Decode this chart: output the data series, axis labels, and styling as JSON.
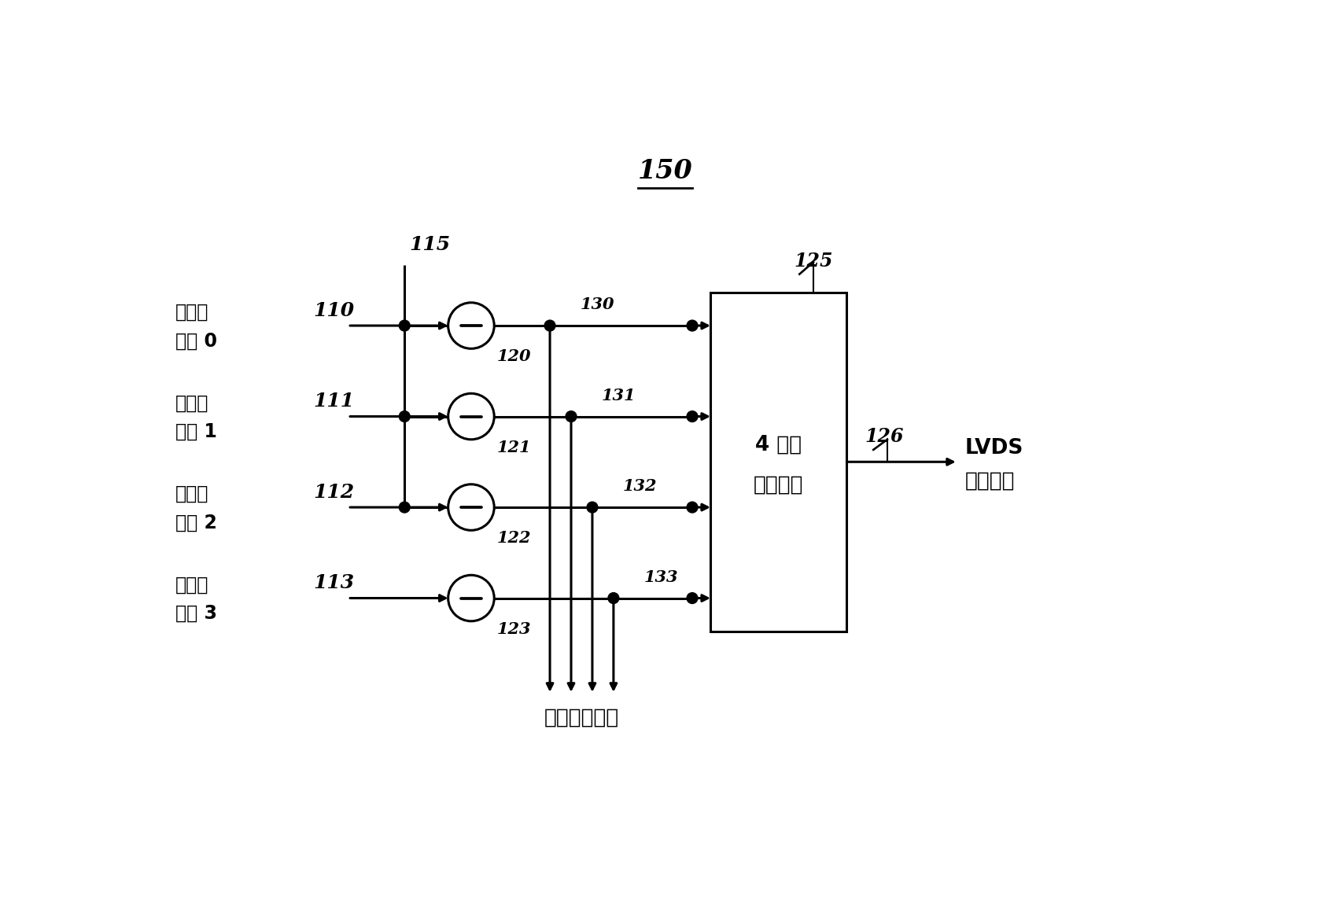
{
  "bg_color": "#ffffff",
  "title_label": "150",
  "label_115": "115",
  "label_125": "125",
  "label_126": "126",
  "counter_labels": [
    {
      "text_line1": "计数器",
      "text_line2": "输出 0",
      "num": "110",
      "row": 0
    },
    {
      "text_line1": "计数器",
      "text_line2": "输出 1",
      "num": "111",
      "row": 1
    },
    {
      "text_line1": "计数器",
      "text_line2": "输出 2",
      "num": "112",
      "row": 2
    },
    {
      "text_line1": "计数器",
      "text_line2": "输出 3",
      "num": "113",
      "row": 3
    }
  ],
  "subtractor_labels": [
    "120",
    "121",
    "122",
    "123"
  ],
  "output_line_labels": [
    "130",
    "131",
    "132",
    "133"
  ],
  "box_text": "4 系统\n串行处理",
  "lvds_text_line1": "LVDS",
  "lvds_text_line2": "输出数据",
  "bin_text": "算位部分数据",
  "line_color": "#000000",
  "font_color": "#000000",
  "lw": 2.2,
  "dot_r": 0.09,
  "circle_r": 0.38
}
